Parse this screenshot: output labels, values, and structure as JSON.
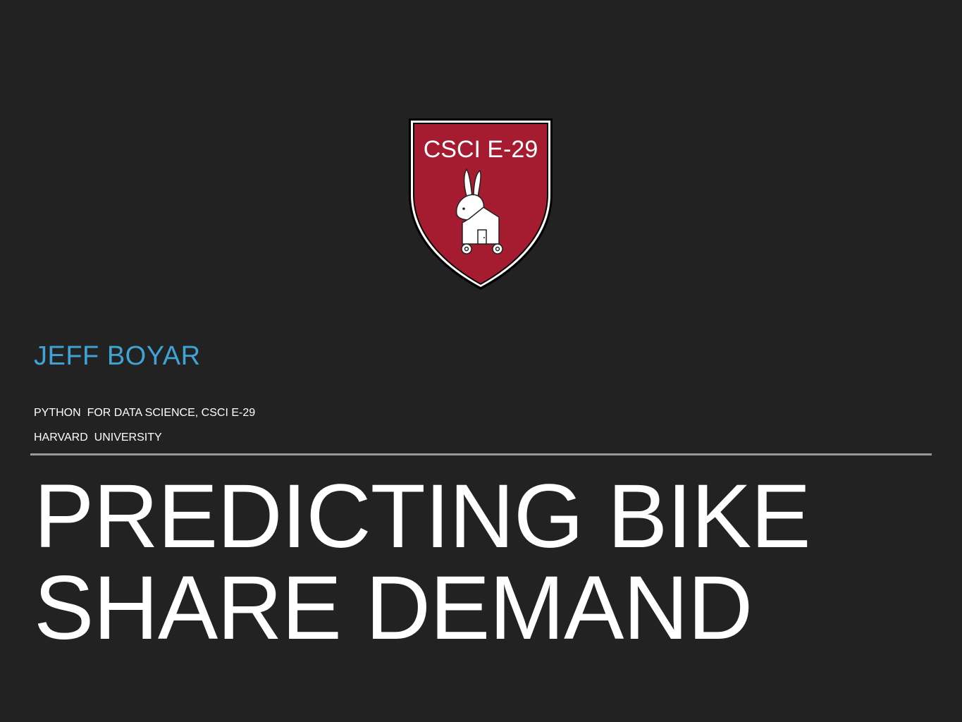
{
  "logo": {
    "text": "CSCI E-29",
    "shield_color": "#a51c30",
    "icon": "rabbit-house-icon"
  },
  "presenter": {
    "name": "JEFF BOYAR",
    "color": "#3fa3d6"
  },
  "course": {
    "line1": "PYTHON  FOR DATA SCIENCE, CSCI E-29",
    "line2": "HARVARD  UNIVERSITY"
  },
  "title": {
    "line1": "PREDICTING BIKE",
    "line2": "SHARE DEMAND"
  }
}
